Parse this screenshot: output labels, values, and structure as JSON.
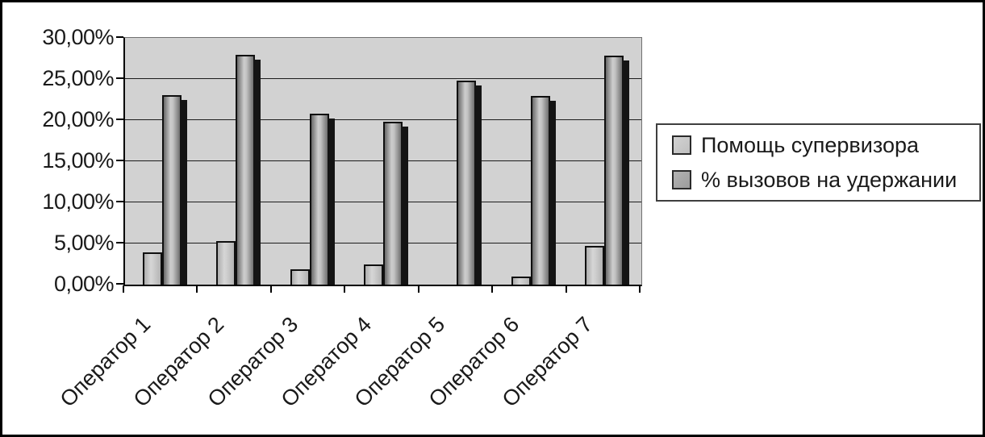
{
  "chart_data": {
    "type": "bar",
    "title": "",
    "xlabel": "",
    "ylabel": "",
    "categories": [
      "Оператор 1",
      "Оператор 2",
      "Оператор 3",
      "Оператор 4",
      "Оператор 5",
      "Оператор 6",
      "Оператор 7"
    ],
    "series": [
      {
        "name": "Помощь супервизора",
        "color": "#c6c6c6",
        "values": [
          3.9,
          5.3,
          1.9,
          2.5,
          0.0,
          1.0,
          4.7
        ]
      },
      {
        "name": "% вызовов на удержании",
        "color": "#a3a3a3",
        "values": [
          23.0,
          27.9,
          20.8,
          19.8,
          24.8,
          22.9,
          27.8
        ]
      }
    ],
    "ylim": [
      0,
      30
    ],
    "y_ticks": [
      {
        "value": 0,
        "label": "0,00%"
      },
      {
        "value": 5,
        "label": "5,00%"
      },
      {
        "value": 10,
        "label": "10,00%"
      },
      {
        "value": 15,
        "label": "15,00%"
      },
      {
        "value": 20,
        "label": "20,00%"
      },
      {
        "value": 25,
        "label": "25,00%"
      },
      {
        "value": 30,
        "label": "30,00%"
      }
    ],
    "grid": true,
    "legend_position": "right",
    "plot_bg": "#d2d2d2"
  }
}
